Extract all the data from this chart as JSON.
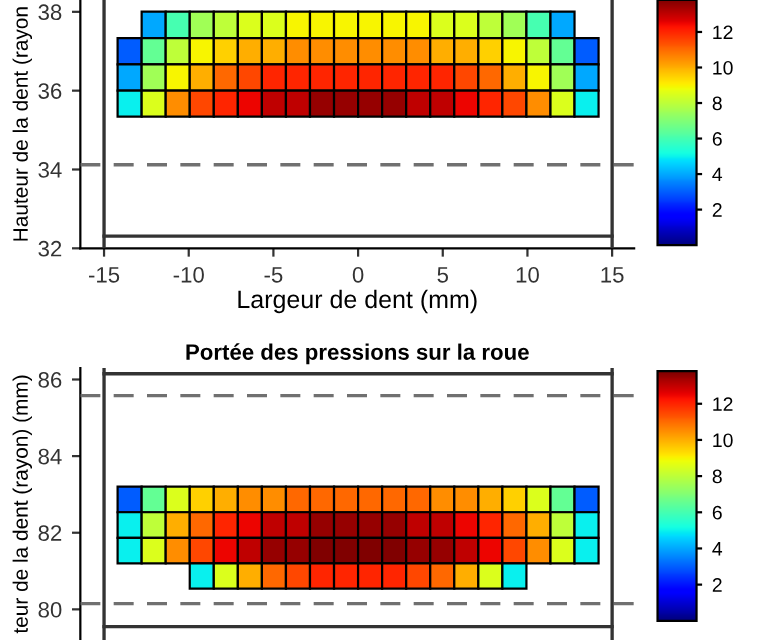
{
  "chart_data": [
    {
      "type": "heatmap",
      "xlabel": "Largeur de dent (mm)",
      "ylabel": "Hauteur de la dent (rayon",
      "x": [
        -13.49,
        -12.07,
        -10.65,
        -9.23,
        -7.81,
        -6.39,
        -4.97,
        -3.55,
        -2.13,
        -0.71,
        0.71,
        2.13,
        3.55,
        4.97,
        6.39,
        7.81,
        9.23,
        10.65,
        12.07,
        13.49
      ],
      "y": [
        37.67,
        37.0,
        36.33,
        35.67
      ],
      "cells": [
        [
          null,
          4,
          6,
          7.5,
          8,
          8.5,
          8.5,
          9,
          9,
          9,
          9,
          9,
          9,
          8.5,
          8.5,
          8,
          7.5,
          6,
          4,
          null
        ],
        [
          3,
          6.5,
          8,
          9,
          9.5,
          10,
          10,
          10.5,
          10.5,
          10.5,
          10.5,
          10.5,
          10.5,
          10,
          10,
          9.5,
          9,
          8,
          6.5,
          3
        ],
        [
          4,
          7.5,
          9,
          10,
          11,
          11.5,
          12,
          12,
          12,
          12,
          12,
          12,
          12,
          12,
          11.5,
          11,
          10,
          9,
          7.5,
          4
        ],
        [
          5,
          8.5,
          10.5,
          11.5,
          12,
          12.5,
          13,
          13,
          13.5,
          13.5,
          13.5,
          13.5,
          13,
          13,
          12.5,
          12,
          11.5,
          10.5,
          8.5,
          5
        ]
      ],
      "clim": [
        0,
        13.8
      ],
      "cticks": [
        2,
        4,
        6,
        8,
        10,
        12
      ],
      "xlim": [
        -16.4,
        16.3
      ],
      "ylim": [
        32,
        38.3
      ],
      "xticks": [
        -15,
        -10,
        -5,
        0,
        5,
        10,
        15
      ],
      "yticks": [
        32,
        34,
        36,
        38
      ],
      "ref_lines": [
        {
          "axis": "y",
          "value": 34.12,
          "color": "#707070",
          "line_style": "dashed"
        },
        {
          "axis": "x",
          "value": -15,
          "color": "#333333",
          "line_style": "solid"
        },
        {
          "axis": "x",
          "value": 15,
          "color": "#333333",
          "line_style": "solid"
        },
        {
          "axis": "y",
          "value": 32.31,
          "color": "#333333",
          "line_style": "solid"
        }
      ]
    },
    {
      "type": "heatmap",
      "title": "Portée des pressions sur la roue",
      "ylabel": "teur de la dent (rayon) (mm)",
      "x": [
        -13.49,
        -12.07,
        -10.65,
        -9.23,
        -7.81,
        -6.39,
        -4.97,
        -3.55,
        -2.13,
        -0.71,
        0.71,
        2.13,
        3.55,
        4.97,
        6.39,
        7.81,
        9.23,
        10.65,
        12.07,
        13.49
      ],
      "y": [
        82.87,
        82.2,
        81.53,
        80.87
      ],
      "cells": [
        [
          3,
          6.5,
          8.5,
          9.5,
          10,
          10.5,
          10.5,
          11,
          11,
          11,
          11,
          11,
          11,
          10.5,
          10.5,
          10,
          9.5,
          8.5,
          6.5,
          3
        ],
        [
          5,
          8,
          10,
          11,
          12,
          12.5,
          13,
          13,
          13.5,
          13.5,
          13.5,
          13.5,
          13,
          13,
          12.5,
          12,
          11,
          10,
          8,
          5
        ],
        [
          5,
          8.5,
          10.5,
          11.5,
          12.5,
          13,
          13.5,
          13.5,
          13.8,
          13.8,
          13.8,
          13.8,
          13.5,
          13.5,
          13,
          12.5,
          11.5,
          10.5,
          8.5,
          5
        ],
        [
          null,
          null,
          null,
          5,
          8.5,
          10,
          11,
          11.5,
          12,
          12,
          12,
          12,
          11.5,
          11,
          10,
          8.5,
          5,
          null,
          null,
          null
        ]
      ],
      "clim": [
        0,
        13.8
      ],
      "cticks": [
        2,
        4,
        6,
        8,
        10,
        12
      ],
      "xlim": [
        -16.4,
        16.3
      ],
      "ylim": [
        79.2,
        86.3
      ],
      "yticks": [
        80,
        82,
        84,
        86
      ],
      "tick_labels": "y",
      "ref_lines": [
        {
          "axis": "y",
          "value": 85.58,
          "color": "#707070",
          "line_style": "dashed"
        },
        {
          "axis": "y",
          "value": 80.15,
          "color": "#707070",
          "line_style": "dashed"
        },
        {
          "axis": "x",
          "value": -15,
          "color": "#333333",
          "line_style": "solid"
        },
        {
          "axis": "x",
          "value": 15,
          "color": "#333333",
          "line_style": "solid"
        },
        {
          "axis": "y",
          "value": 86.15,
          "color": "#333333",
          "line_style": "solid"
        },
        {
          "axis": "y",
          "value": 79.55,
          "color": "#333333",
          "line_style": "solid"
        }
      ]
    }
  ]
}
